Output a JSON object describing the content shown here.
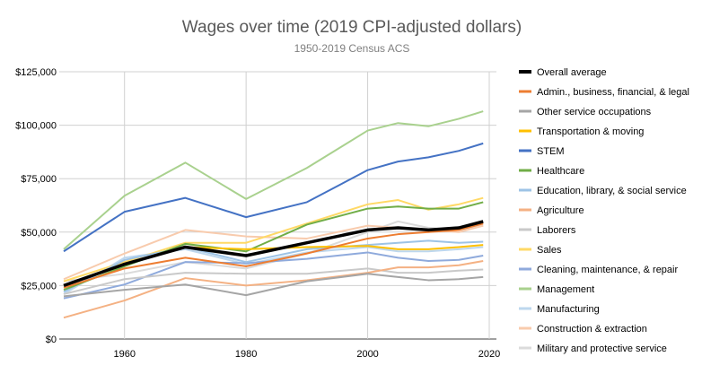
{
  "chart_data": {
    "type": "line",
    "title": "Wages over time (2019 CPI-adjusted dollars)",
    "subtitle": "1950-2019 Census ACS",
    "xlabel": "",
    "ylabel": "",
    "xlim": [
      1950,
      2020
    ],
    "ylim": [
      0,
      125000
    ],
    "x_ticks": [
      1960,
      1980,
      2000,
      2020
    ],
    "x_tick_labels": [
      "1960",
      "1980",
      "2000",
      "2020"
    ],
    "y_ticks": [
      0,
      25000,
      50000,
      75000,
      100000,
      125000
    ],
    "y_tick_labels": [
      "$0",
      "$25,000",
      "$50,000",
      "$75,000",
      "$100,000",
      "$125,000"
    ],
    "grid": true,
    "legend_position": "right",
    "x": [
      1950,
      1960,
      1970,
      1980,
      1990,
      2000,
      2005,
      2010,
      2015,
      2019
    ],
    "series": [
      {
        "name": "Overall average",
        "color": "#000000",
        "width": 3.5,
        "values": [
          25000,
          35000,
          43000,
          39000,
          45000,
          51000,
          52000,
          51000,
          52000,
          55000
        ]
      },
      {
        "name": "Admin., business, financial, & legal",
        "color": "#ED7D31",
        "width": 2,
        "values": [
          24000,
          33000,
          38000,
          34000,
          40000,
          47000,
          49000,
          50000,
          51000,
          54000
        ]
      },
      {
        "name": "Other service occupations",
        "color": "#A5A5A5",
        "width": 2,
        "values": [
          20000,
          23000,
          25500,
          20500,
          27000,
          30500,
          29000,
          27500,
          28000,
          29000
        ]
      },
      {
        "name": "Transportation & moving",
        "color": "#FFC000",
        "width": 2,
        "values": [
          25000,
          35000,
          43000,
          42000,
          43000,
          43500,
          42000,
          42000,
          43000,
          44000
        ]
      },
      {
        "name": "STEM",
        "color": "#4472C4",
        "width": 2,
        "values": [
          41000,
          59500,
          66000,
          57000,
          64000,
          79000,
          83000,
          85000,
          88000,
          91500
        ]
      },
      {
        "name": "Healthcare",
        "color": "#70AD47",
        "width": 2,
        "values": [
          23000,
          34000,
          44500,
          41000,
          53500,
          61000,
          62000,
          61000,
          61000,
          64000
        ]
      },
      {
        "name": "Education, library, & social service",
        "color": "#9DC3E6",
        "width": 2,
        "values": [
          22000,
          37000,
          43000,
          36000,
          42000,
          44000,
          45000,
          46000,
          45000,
          45500
        ]
      },
      {
        "name": "Agriculture",
        "color": "#F4B183",
        "width": 2,
        "values": [
          10000,
          18000,
          28500,
          25000,
          27500,
          31000,
          33500,
          33500,
          34500,
          36500
        ]
      },
      {
        "name": "Laborers",
        "color": "#C9C9C9",
        "width": 2,
        "values": [
          21000,
          28000,
          31000,
          30500,
          30500,
          33000,
          31000,
          31000,
          32000,
          32500
        ]
      },
      {
        "name": "Sales",
        "color": "#FFD966",
        "width": 2,
        "values": [
          27000,
          36000,
          45000,
          45000,
          54000,
          63000,
          65000,
          60500,
          63000,
          66000
        ]
      },
      {
        "name": "Cleaning, maintenance, & repair",
        "color": "#8FAADC",
        "width": 2,
        "values": [
          19000,
          25500,
          36000,
          35500,
          37500,
          40500,
          38000,
          36500,
          37000,
          39000
        ]
      },
      {
        "name": "Management",
        "color": "#A9D18E",
        "width": 2,
        "values": [
          42000,
          67000,
          82500,
          65500,
          80000,
          97500,
          101000,
          99500,
          103000,
          106500
        ]
      },
      {
        "name": "Manufacturing",
        "color": "#BDD7EE",
        "width": 2,
        "values": [
          21000,
          38000,
          42000,
          35000,
          40500,
          43000,
          41000,
          41000,
          42000,
          43000
        ]
      },
      {
        "name": "Construction & extraction",
        "color": "#F8CBAD",
        "width": 2,
        "values": [
          28000,
          40000,
          51000,
          48000,
          47000,
          53000,
          52000,
          51000,
          50000,
          53000
        ]
      },
      {
        "name": "Military and protective service",
        "color": "#DBDBDB",
        "width": 2,
        "values": [
          27000,
          30500,
          36000,
          33000,
          40000,
          50000,
          55000,
          52000,
          51000,
          53000
        ]
      }
    ]
  }
}
